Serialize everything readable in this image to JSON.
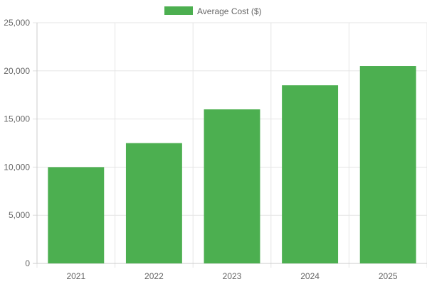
{
  "chart_data": {
    "type": "bar",
    "categories": [
      "2021",
      "2022",
      "2023",
      "2024",
      "2025"
    ],
    "series": [
      {
        "name": "Average Cost ($)",
        "values": [
          10000,
          12500,
          16000,
          18500,
          20500
        ],
        "color": "#4caf50"
      }
    ],
    "ylim": [
      0,
      25000
    ],
    "yticks": [
      0,
      5000,
      10000,
      15000,
      20000,
      25000
    ],
    "ytick_labels": [
      "0",
      "5,000",
      "10,000",
      "15,000",
      "20,000",
      "25,000"
    ],
    "grid": true,
    "legend_position": "top-center",
    "grid_color": "#e5e5e5",
    "axis_color": "#cccccc"
  }
}
